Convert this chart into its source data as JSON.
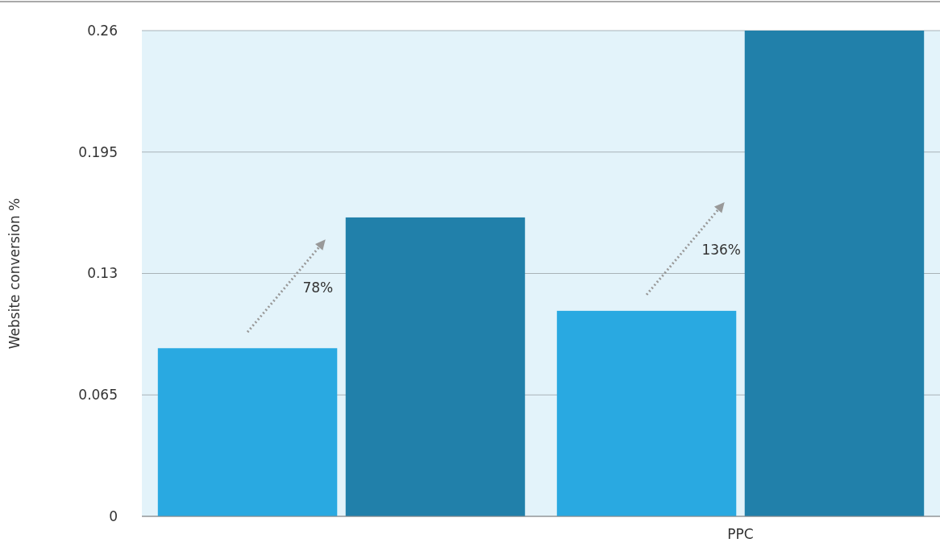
{
  "chart_data": {
    "type": "bar",
    "ylabel": "Website conversion %",
    "categories": [
      null,
      "PPC"
    ],
    "series": [
      {
        "color": "#29a9e1",
        "values": [
          0.09,
          0.11
        ]
      },
      {
        "color": "#2180aa",
        "values": [
          0.16,
          0.26
        ]
      }
    ],
    "ylim": [
      0,
      0.26
    ],
    "yticks": [
      0,
      0.065,
      0.13,
      0.195,
      0.26
    ],
    "grid": "y",
    "annotations": [
      "78%",
      "136%"
    ]
  }
}
